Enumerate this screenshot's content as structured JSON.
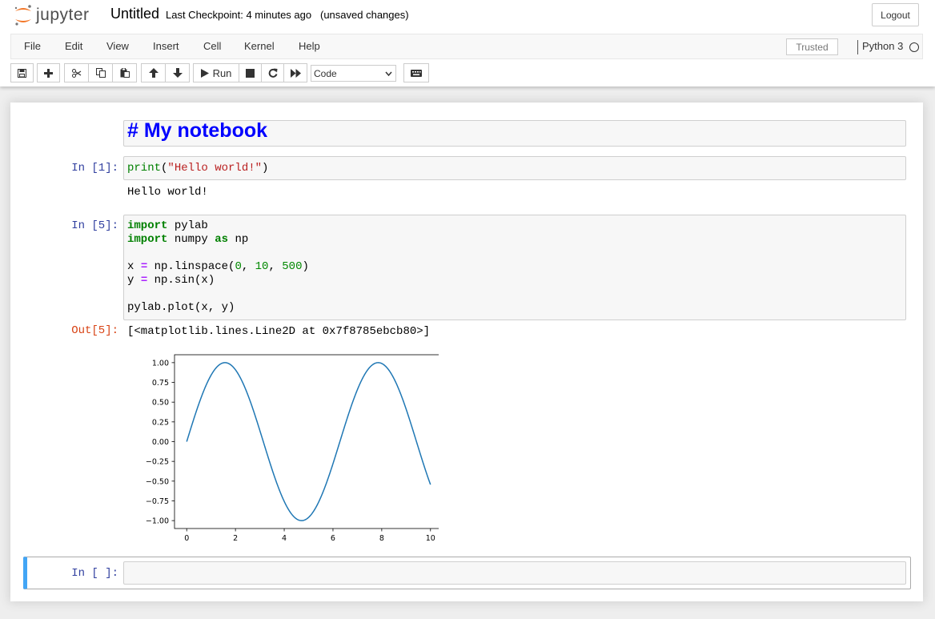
{
  "header": {
    "logo_text": "jupyter",
    "notebook_name": "Untitled",
    "checkpoint": "Last Checkpoint: 4 minutes ago",
    "autosave_status": "(unsaved changes)",
    "logout_label": "Logout"
  },
  "menubar": {
    "items": [
      "File",
      "Edit",
      "View",
      "Insert",
      "Cell",
      "Kernel",
      "Help"
    ],
    "trusted_label": "Trusted",
    "kernel_name": "Python 3"
  },
  "toolbar": {
    "run_label": "Run",
    "cell_type": "Code",
    "icons": [
      "save-icon",
      "plus-icon",
      "scissors-icon",
      "copy-icon",
      "paste-icon",
      "arrow-up-icon",
      "arrow-down-icon",
      "play-icon",
      "stop-icon",
      "refresh-icon",
      "fast-forward-icon",
      "keyboard-icon"
    ]
  },
  "cells": {
    "markdown": {
      "text": "# My notebook"
    },
    "cell1": {
      "prompt": "In [1]:",
      "code_tokens": [
        [
          "print",
          "bi"
        ],
        [
          "(",
          ""
        ],
        [
          "\"Hello world!\"",
          "str"
        ],
        [
          ")",
          ""
        ]
      ],
      "output": "Hello world!"
    },
    "cell2": {
      "prompt": "In [5]:",
      "out_prompt": "Out[5]:",
      "code_lines": [
        [
          [
            "import",
            "kw"
          ],
          [
            " pylab",
            ""
          ]
        ],
        [
          [
            "import",
            "kw"
          ],
          [
            " numpy ",
            ""
          ],
          [
            "as",
            "kw"
          ],
          [
            " np",
            ""
          ]
        ],
        [],
        [
          [
            "x ",
            ""
          ],
          [
            "=",
            "op"
          ],
          [
            " np.linspace(",
            ""
          ],
          [
            "0",
            "num"
          ],
          [
            ", ",
            ""
          ],
          [
            "10",
            "num"
          ],
          [
            ", ",
            ""
          ],
          [
            "500",
            "num"
          ],
          [
            ")",
            ""
          ]
        ],
        [
          [
            "y ",
            ""
          ],
          [
            "=",
            "op"
          ],
          [
            " np.sin(x)",
            ""
          ]
        ],
        [],
        [
          [
            "pylab.plot(x, y)",
            ""
          ]
        ]
      ],
      "output": "[<matplotlib.lines.Line2D at 0x7f8785ebcb80>]"
    },
    "cell3": {
      "prompt": "In [ ]:"
    }
  },
  "chart_data": {
    "type": "line",
    "series": [
      {
        "function": "sin(x)",
        "x_range": [
          0,
          10
        ],
        "num_points": 500,
        "color": "#1f77b4"
      }
    ],
    "xlim": [
      -0.5,
      10.5
    ],
    "ylim": [
      -1.1,
      1.1
    ],
    "xticks": [
      0,
      2,
      4,
      6,
      8,
      10
    ],
    "yticks": [
      1.0,
      0.75,
      0.5,
      0.25,
      0.0,
      -0.25,
      -0.5,
      -0.75,
      -1.0
    ],
    "ytick_labels": [
      "1.00",
      "0.75",
      "0.50",
      "0.25",
      "0.00",
      "−0.25",
      "−0.50",
      "−0.75",
      "−1.00"
    ],
    "grid": false
  }
}
